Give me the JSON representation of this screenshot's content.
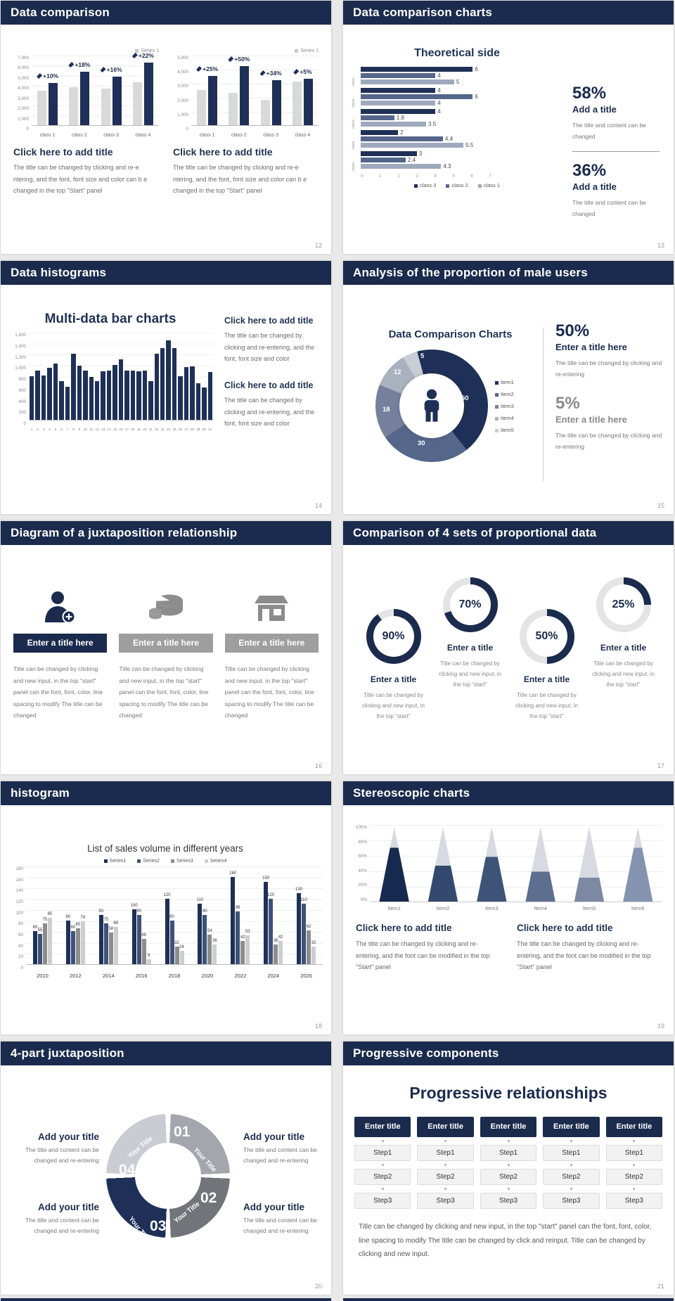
{
  "colors": {
    "header_navy": "#1b2b4d",
    "chart_navy": "#1e3057",
    "slate": "#54668a",
    "light_slate": "#9fa9bd",
    "gray_bar": "#d9d9d9"
  },
  "slides": [
    {
      "title": "Data comparison",
      "page": "12",
      "legend": "Series 1",
      "heading": "Click here to add title",
      "body": "The title can be changed by clicking and re-e ntering, and the font, font size and color can b e changed in the top \"Start\" panel",
      "chart_data": [
        {
          "type": "bar",
          "categories": [
            "class 1",
            "class 2",
            "class 3",
            "class 4"
          ],
          "series": [
            {
              "name": "gray",
              "values": [
                3400,
                3750,
                3650,
                4300
              ]
            },
            {
              "name": "navy",
              "values": [
                4200,
                5300,
                4800,
                6200
              ]
            }
          ],
          "labels": [
            "+10%",
            "+18%",
            "+16%",
            "+22%"
          ],
          "ylim": [
            0,
            7000
          ],
          "yticks": [
            "7,000",
            "6,000",
            "5,000",
            "4,000",
            "3,000",
            "2,000",
            "1,000",
            "0"
          ]
        },
        {
          "type": "bar",
          "categories": [
            "class 1",
            "class 2",
            "class 3",
            "class 4"
          ],
          "series": [
            {
              "name": "gray",
              "values": [
                2500,
                2300,
                1800,
                3100
              ]
            },
            {
              "name": "navy",
              "values": [
                3500,
                4200,
                3200,
                3300
              ]
            }
          ],
          "labels": [
            "+25%",
            "+50%",
            "+34%",
            "+5%"
          ],
          "ylim": [
            0,
            5000
          ],
          "yticks": [
            "5,000",
            "4,000",
            "3,000",
            "2,000",
            "1,000",
            "0"
          ]
        }
      ]
    },
    {
      "title": "Data comparison charts",
      "page": "13",
      "chart_data": {
        "type": "bar-horizontal",
        "title": "Theoretical side",
        "cat_label": "class…",
        "xticks": [
          "0",
          "1",
          "2",
          "3",
          "4",
          "5",
          "6",
          "7"
        ],
        "xlim": [
          0,
          7
        ],
        "legend": [
          "class 3",
          "class 2",
          "class 1"
        ],
        "series": [
          {
            "name": "class 3",
            "values": [
              6,
              4,
              4,
              2,
              3
            ]
          },
          {
            "name": "class 2",
            "values": [
              4,
              6,
              1.8,
              4.4,
              2.4
            ]
          },
          {
            "name": "class 1",
            "values": [
              5,
              4,
              3.5,
              5.5,
              4.3
            ]
          }
        ]
      },
      "stats": [
        {
          "pct": "58%",
          "t": "Add a title",
          "b": "The title and content can be changed"
        },
        {
          "pct": "36%",
          "t": "Add a title",
          "b": "The title and content can be changed"
        }
      ]
    },
    {
      "title": "Data histograms",
      "page": "14",
      "chart_data": {
        "type": "bar",
        "title": "Multi-data bar charts",
        "ylim": [
          0,
          1600
        ],
        "yticks": [
          "1,600",
          "1,400",
          "1,200",
          "1,000",
          "800",
          "600",
          "400",
          "200",
          "0"
        ],
        "values": [
          790,
          900,
          810,
          950,
          1020,
          700,
          600,
          1200,
          990,
          900,
          780,
          700,
          890,
          900,
          1000,
          1100,
          900,
          900,
          880,
          900,
          700,
          1200,
          1300,
          1450,
          1300,
          800,
          960,
          970,
          660,
          590,
          870
        ]
      },
      "blocks": [
        {
          "h": "Click here to add title",
          "b": "The title can be changed by clicking and re-entering, and the font, font size and color"
        },
        {
          "h": "Click here to add title",
          "b": "The title can be changed by clicking and re-entering, and the font, font size and color"
        }
      ]
    },
    {
      "title": "Analysis of the proportion of male users",
      "page": "15",
      "chart_data": {
        "type": "pie",
        "title": "Data Comparison Charts",
        "values": [
          50,
          30,
          18,
          12,
          5
        ],
        "labels": [
          "50",
          "30",
          "18",
          "12",
          "5"
        ],
        "legend": [
          "Item1",
          "Item2",
          "Item3",
          "Item4",
          "Item5"
        ],
        "colors": [
          "#1e3057",
          "#54668a",
          "#75819c",
          "#aab1bf",
          "#c9cdd4"
        ]
      },
      "stats": [
        {
          "pct": "50%",
          "t": "Enter a title here",
          "b": "The title can be changed by clicking and re-entering",
          "gray": false
        },
        {
          "pct": "5%",
          "t": "Enter a title here",
          "b": "The title can be changed by clicking and re-entering",
          "gray": true
        }
      ]
    },
    {
      "title": "Diagram of a juxtaposition relationship",
      "page": "16",
      "items": [
        {
          "icon": "person-plus-icon",
          "t": "Enter a title here"
        },
        {
          "icon": "pie-3d-icon",
          "t": "Enter a title here"
        },
        {
          "icon": "building-icon",
          "t": "Enter a title here"
        }
      ],
      "body": "Title can be changed by clicking and new input, in the top \"start\" panel can the font, font, color, line spacing to modify The title can be changed"
    },
    {
      "title": "Comparison of 4 sets of proportional data",
      "page": "17",
      "ring_title": "Enter a title",
      "ring_body": "Title can be changed by clicking and new input, in the top \"start\"",
      "chart_data": {
        "type": "pie",
        "rings": [
          90,
          70,
          50,
          25
        ],
        "ring_labels": [
          "90%",
          "70%",
          "50%",
          "25%"
        ]
      }
    },
    {
      "title": "histogram",
      "page": "18",
      "chart_data": {
        "type": "bar",
        "title": "List of sales volume in different years",
        "legend": [
          "Series1",
          "Series2",
          "Series3",
          "Series4"
        ],
        "categories": [
          "2010",
          "2012",
          "2014",
          "2016",
          "2018",
          "2020",
          "2022",
          "2024",
          "2026"
        ],
        "series": [
          {
            "name": "Series1",
            "values": [
              60,
              80,
              90,
              100,
              120,
              110,
              160,
              150,
              130
            ]
          },
          {
            "name": "Series2",
            "values": [
              55,
              60,
              75,
              90,
              80,
              90,
              96,
              120,
              110
            ]
          },
          {
            "name": "Series3",
            "values": [
              75,
              65,
              58,
              46,
              32,
              54,
              42,
              36,
              62
            ]
          },
          {
            "name": "Series4",
            "values": [
              85,
              78,
              68,
              9,
              24,
              36,
              53,
              42,
              32
            ]
          }
        ],
        "ylim": [
          0,
          180
        ],
        "yticks": [
          "180",
          "160",
          "140",
          "120",
          "100",
          "80",
          "60",
          "40",
          "20",
          "0"
        ]
      }
    },
    {
      "title": "Stereoscopic charts",
      "page": "19",
      "chart_data": {
        "type": "bar",
        "categories": [
          "Item1",
          "Item2",
          "Item3",
          "Item4",
          "Item5",
          "Item6"
        ],
        "values": [
          72,
          48,
          60,
          40,
          32,
          72
        ],
        "ylim": [
          0,
          100
        ],
        "yticks": [
          "100%",
          "80%",
          "60%",
          "40%",
          "20%",
          "0%"
        ],
        "colors": [
          "#16294e",
          "#334a6e",
          "#3d5478",
          "#5d6f8f",
          "#7d89a3",
          "#8494b0"
        ]
      },
      "blocks": [
        {
          "h": "Click here to add title",
          "b": "The title can be changed by clicking and re-entering, and the font can be modified in the top \"Start\" panel"
        },
        {
          "h": "Click here to add title",
          "b": "The title can be changed by clicking and re-entering, and the font can be modified in the top \"Start\" panel"
        }
      ]
    },
    {
      "title": "4-part juxtaposition",
      "page": "20",
      "wheel": {
        "segments": [
          {
            "num": "01",
            "label": "Your Title",
            "color": "#c9ccd2"
          },
          {
            "num": "02",
            "label": "Your Title",
            "color": "#a3a6ac"
          },
          {
            "num": "03",
            "label": "Your Title",
            "color": "#717478"
          },
          {
            "num": "04",
            "label": "Your Title",
            "color": "#1e3057"
          }
        ]
      },
      "blocks": [
        {
          "t": "Add your title",
          "b": "The title and content can be changed and re-entering"
        },
        {
          "t": "Add your title",
          "b": "The title and content can be changed and re-entering"
        },
        {
          "t": "Add your title",
          "b": "The title and content can be changed and re-entering"
        },
        {
          "t": "Add your title",
          "b": "The title and content can be changed and re-entering"
        }
      ]
    },
    {
      "title": "Progressive components",
      "page": "21",
      "heading": "Progressive relationships",
      "col_header": "Enter title",
      "steps": [
        "Step1",
        "Step2",
        "Step3"
      ],
      "cols": 5,
      "body": "Title can be changed by clicking and new input, in the top \"start\" panel can the font, font, color, line spacing to modify The title can be changed by click and reinput. Title can be changed by clicking and new input."
    }
  ]
}
